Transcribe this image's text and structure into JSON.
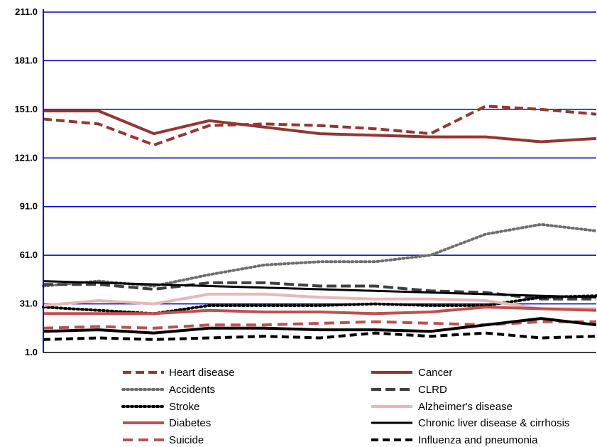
{
  "chart_data": {
    "type": "line",
    "title": "",
    "xlabel": "",
    "ylabel": "",
    "ylim": [
      1.0,
      211.0
    ],
    "yticks": [
      "1.0",
      "31.0",
      "61.0",
      "91.0",
      "121.0",
      "151.0",
      "181.0",
      "211.0"
    ],
    "grid": true,
    "legend": "bottom",
    "x": [
      0,
      1,
      2,
      3,
      4,
      5,
      6,
      7,
      8,
      9,
      10
    ],
    "series": [
      {
        "name": "Heart disease",
        "color": "#943634",
        "dash": "12 6",
        "width": 4,
        "values": [
          145,
          142,
          129,
          141,
          142,
          141,
          139,
          136,
          153,
          151,
          148
        ]
      },
      {
        "name": "Cancer",
        "color": "#943634",
        "dash": "",
        "width": 4,
        "values": [
          150,
          150,
          136,
          144,
          140,
          136,
          135,
          134,
          134,
          131,
          133
        ]
      },
      {
        "name": "Accidents",
        "color": "#6e6e6e",
        "dash": "2 4",
        "width": 4,
        "values": [
          42,
          45,
          42,
          49,
          55,
          57,
          57,
          61,
          74,
          80,
          76
        ]
      },
      {
        "name": "CLRD",
        "color": "#404040",
        "dash": "14 6",
        "width": 4,
        "values": [
          43,
          43,
          40,
          44,
          44,
          42,
          42,
          39,
          38,
          34,
          34
        ]
      },
      {
        "name": "Stroke",
        "color": "#000000",
        "dash": "2 4",
        "width": 4,
        "values": [
          29,
          27,
          25,
          30,
          30,
          30,
          31,
          30,
          30,
          35,
          36
        ]
      },
      {
        "name": "Alzheimer's disease",
        "color": "#e6b8b7",
        "dash": "",
        "width": 4,
        "values": [
          30,
          33,
          31,
          37,
          37,
          35,
          34,
          34,
          33,
          28,
          28
        ]
      },
      {
        "name": "Diabetes",
        "color": "#c0504d",
        "dash": "",
        "width": 4,
        "values": [
          25,
          25,
          25,
          27,
          26,
          26,
          25,
          26,
          29,
          28,
          27
        ]
      },
      {
        "name": "Chronic liver disease & cirrhosis",
        "color": "#000000",
        "dash": "",
        "width": 3,
        "values": [
          45,
          44,
          43,
          42,
          41,
          40,
          39,
          38,
          37,
          36,
          35
        ]
      },
      {
        "name": "Suicide",
        "color": "#c0504d",
        "dash": "14 8",
        "width": 4,
        "values": [
          16,
          17,
          16,
          18,
          18,
          19,
          20,
          19,
          18,
          20,
          20
        ]
      },
      {
        "name": "Influenza and pneumonia",
        "color": "#000000",
        "dash": "10 6",
        "width": 4,
        "values": [
          9,
          10,
          9,
          10,
          11,
          10,
          13,
          11,
          13,
          10,
          11
        ]
      },
      {
        "name": "",
        "color": "#000000",
        "dash": "",
        "width": 4,
        "values": [
          14,
          15,
          13,
          16,
          16,
          15,
          15,
          14,
          18,
          22,
          18
        ]
      }
    ]
  }
}
